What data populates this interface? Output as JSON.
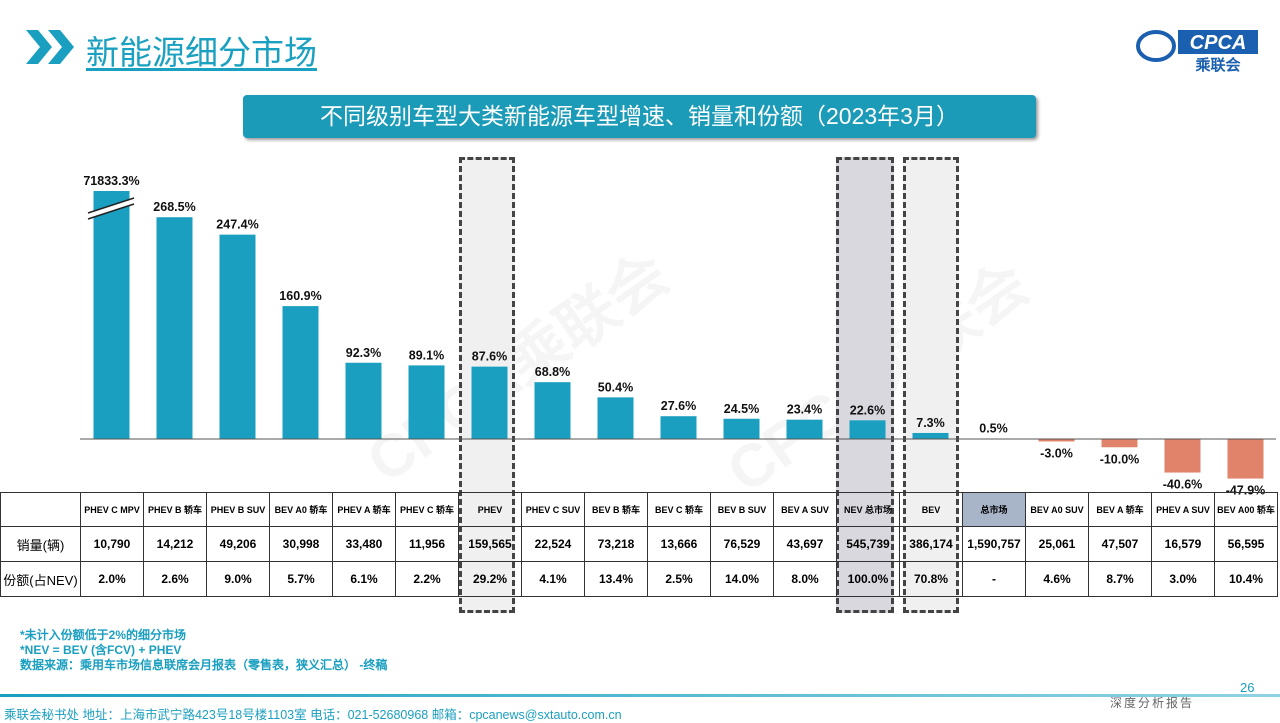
{
  "header": {
    "title": "新能源细分市场",
    "logo_text": "CPCA",
    "logo_sub": "乘联会"
  },
  "watermark": "CPCA乘联会",
  "chart_data": {
    "type": "bar",
    "title": "不同级别车型大类新能源车型增速、销量和份额（2023年3月）",
    "categories": [
      "PHEV C MPV",
      "PHEV B 轿车",
      "PHEV B SUV",
      "BEV A0 轿车",
      "PHEV A 轿车",
      "PHEV C 轿车",
      "PHEV",
      "PHEV C SUV",
      "BEV B 轿车",
      "BEV C 轿车",
      "BEV B SUV",
      "BEV A SUV",
      "NEV 总市场",
      "BEV",
      "总市场",
      "BEV A0 SUV",
      "BEV A 轿车",
      "PHEV A SUV",
      "BEV A00 轿车"
    ],
    "values": [
      71833.3,
      268.5,
      247.4,
      160.9,
      92.3,
      89.1,
      87.6,
      68.8,
      50.4,
      27.6,
      24.5,
      23.4,
      22.6,
      7.3,
      0.5,
      -3.0,
      -10.0,
      -40.6,
      -47.9
    ],
    "labels": [
      "71833.3%",
      "268.5%",
      "247.4%",
      "160.9%",
      "92.3%",
      "89.1%",
      "87.6%",
      "68.8%",
      "50.4%",
      "27.6%",
      "24.5%",
      "23.4%",
      "22.6%",
      "7.3%",
      "0.5%",
      "-3.0%",
      "-10.0%",
      "-40.6%",
      "-47.9%"
    ],
    "axis_break": true,
    "highlighted": [
      "PHEV",
      "NEV 总市场",
      "BEV"
    ],
    "colors": {
      "positive": "#1a9fc0",
      "negative": "#e0836a"
    }
  },
  "table": {
    "row_labels": [
      "销量(辆)",
      "份额(占NEV)"
    ],
    "sales": [
      "10,790",
      "14,212",
      "49,206",
      "30,998",
      "33,480",
      "11,956",
      "159,565",
      "22,524",
      "73,218",
      "13,666",
      "76,529",
      "43,697",
      "545,739",
      "386,174",
      "1,590,757",
      "25,061",
      "47,507",
      "16,579",
      "56,595"
    ],
    "share": [
      "2.0%",
      "2.6%",
      "9.0%",
      "5.7%",
      "6.1%",
      "2.2%",
      "29.2%",
      "4.1%",
      "13.4%",
      "2.5%",
      "14.0%",
      "8.0%",
      "100.0%",
      "70.8%",
      "-",
      "4.6%",
      "8.7%",
      "3.0%",
      "10.4%"
    ]
  },
  "notes": [
    "*未计入份额低于2%的细分市场",
    "*NEV = BEV (含FCV) + PHEV",
    "数据来源：乘用车市场信息联席会月报表（零售表，狭义汇总） -终稿"
  ],
  "footer": {
    "text": "乘联会秘书处   地址：上海市武宁路423号18号楼1103室  电话：021-52680968   邮箱：cpcanews@sxtauto.com.cn",
    "page": "26",
    "tag": "深度分析报告"
  }
}
